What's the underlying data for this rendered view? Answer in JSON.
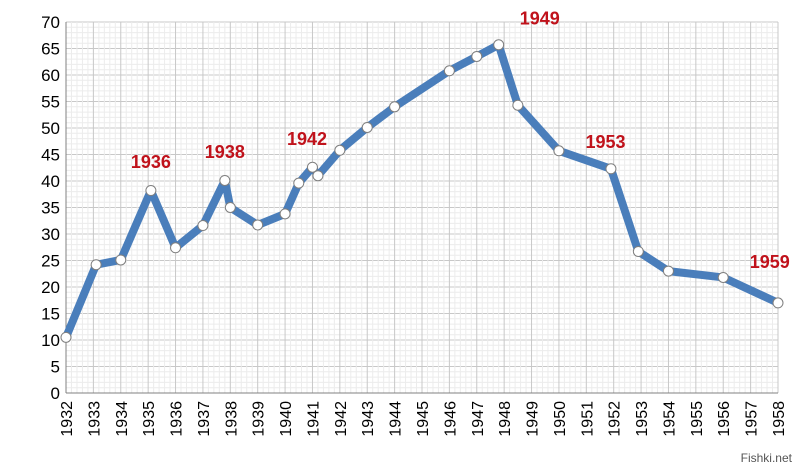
{
  "chart_data": {
    "type": "line",
    "title": "",
    "xlabel": "",
    "ylabel": "",
    "ylim": [
      0,
      70
    ],
    "y_ticks": [
      0,
      5,
      10,
      15,
      20,
      25,
      30,
      35,
      40,
      45,
      50,
      55,
      60,
      65,
      70
    ],
    "x_tick_labels": [
      "1932",
      "1933",
      "1934",
      "1935",
      "1936",
      "1937",
      "1938",
      "1939",
      "1940",
      "1941",
      "1942",
      "1943",
      "1944",
      "1945",
      "1946",
      "1947",
      "1948",
      "1949",
      "1950",
      "1951",
      "1952",
      "1953",
      "1954",
      "1955",
      "1956",
      "1957",
      "1958"
    ],
    "grid": true,
    "legend": "none",
    "line_color": "#4a7ebb",
    "marker_fill": "#ffffff",
    "annotation_color": "#c0121b",
    "series": [
      {
        "points": [
          {
            "x": 1932.0,
            "y": 10.5
          },
          {
            "x": 1933.1,
            "y": 24.2
          },
          {
            "x": 1934.0,
            "y": 25.1
          },
          {
            "x": 1935.1,
            "y": 38.2
          },
          {
            "x": 1936.0,
            "y": 27.4
          },
          {
            "x": 1937.0,
            "y": 31.6
          },
          {
            "x": 1937.8,
            "y": 40.1
          },
          {
            "x": 1938.0,
            "y": 35.0
          },
          {
            "x": 1939.0,
            "y": 31.7
          },
          {
            "x": 1940.0,
            "y": 33.8
          },
          {
            "x": 1940.5,
            "y": 39.6
          },
          {
            "x": 1941.0,
            "y": 42.6
          },
          {
            "x": 1941.2,
            "y": 41.0
          },
          {
            "x": 1942.0,
            "y": 45.8
          },
          {
            "x": 1943.0,
            "y": 50.1
          },
          {
            "x": 1944.0,
            "y": 54.0
          },
          {
            "x": 1946.0,
            "y": 60.8
          },
          {
            "x": 1947.0,
            "y": 63.5
          },
          {
            "x": 1947.8,
            "y": 65.7
          },
          {
            "x": 1948.5,
            "y": 54.3
          },
          {
            "x": 1950.0,
            "y": 45.7
          },
          {
            "x": 1951.9,
            "y": 42.3
          },
          {
            "x": 1952.9,
            "y": 26.7
          },
          {
            "x": 1954.0,
            "y": 23.0
          },
          {
            "x": 1956.0,
            "y": 21.8
          },
          {
            "x": 1958.0,
            "y": 17.0
          }
        ]
      }
    ],
    "annotations": [
      {
        "text": "1936",
        "x": 1935.1,
        "y": 42.5
      },
      {
        "text": "1938",
        "x": 1937.8,
        "y": 44.3
      },
      {
        "text": "1942",
        "x": 1940.8,
        "y": 46.8
      },
      {
        "text": "1949",
        "x": 1949.3,
        "y": 69.5
      },
      {
        "text": "1953",
        "x": 1951.7,
        "y": 46.2
      },
      {
        "text": "1959",
        "x": 1957.7,
        "y": 23.6
      }
    ]
  },
  "watermark": "Fishki.net"
}
